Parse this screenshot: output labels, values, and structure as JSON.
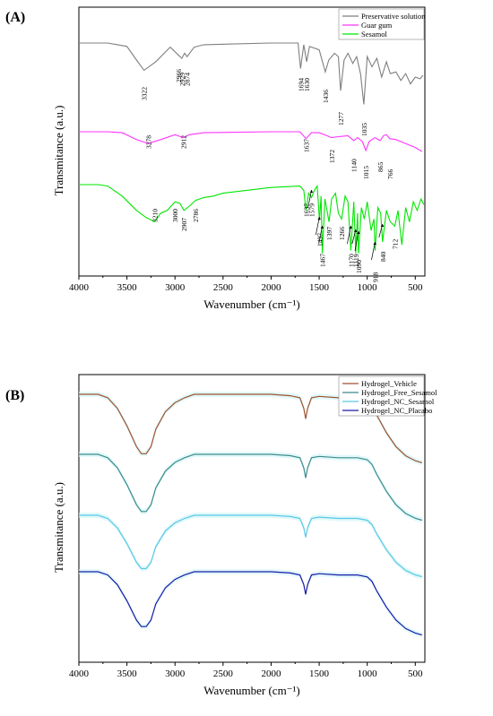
{
  "chart_data": [
    {
      "panel_label": "(A)",
      "type": "line",
      "xlabel": "Wavenumber (cm⁻¹)",
      "ylabel": "Transmitance (a.u.)",
      "xlim": [
        4000,
        400
      ],
      "x_ticks": [
        "4000",
        "3500",
        "3000",
        "2500",
        "2000",
        "1500",
        "1000",
        "500"
      ],
      "legend_position": "top-right",
      "series": [
        {
          "name": "Preservative solution",
          "color": "#7f7f7f",
          "points": [
            [
              4000,
              0.0
            ],
            [
              3700,
              0.0
            ],
            [
              3500,
              0.1
            ],
            [
              3400,
              0.5
            ],
            [
              3322,
              0.8
            ],
            [
              3200,
              0.55
            ],
            [
              3050,
              0.12
            ],
            [
              2966,
              0.35
            ],
            [
              2929,
              0.45
            ],
            [
              2900,
              0.3
            ],
            [
              2874,
              0.4
            ],
            [
              2800,
              0.12
            ],
            [
              2700,
              0.05
            ],
            [
              2000,
              0.0
            ],
            [
              1720,
              0.0
            ],
            [
              1694,
              0.75
            ],
            [
              1660,
              0.05
            ],
            [
              1630,
              0.55
            ],
            [
              1600,
              0.1
            ],
            [
              1500,
              0.2
            ],
            [
              1436,
              0.85
            ],
            [
              1400,
              0.5
            ],
            [
              1340,
              0.3
            ],
            [
              1300,
              0.4
            ],
            [
              1277,
              1.4
            ],
            [
              1240,
              0.5
            ],
            [
              1200,
              0.3
            ],
            [
              1150,
              0.6
            ],
            [
              1110,
              0.4
            ],
            [
              1070,
              0.9
            ],
            [
              1035,
              1.8
            ],
            [
              1000,
              0.4
            ],
            [
              950,
              0.7
            ],
            [
              900,
              0.45
            ],
            [
              850,
              1.0
            ],
            [
              800,
              0.55
            ],
            [
              760,
              0.9
            ],
            [
              700,
              0.85
            ],
            [
              650,
              1.1
            ],
            [
              600,
              0.9
            ],
            [
              550,
              1.2
            ],
            [
              500,
              1.0
            ],
            [
              450,
              1.05
            ],
            [
              420,
              0.95
            ]
          ]
        },
        {
          "name": "Guar gum",
          "color": "#ff33ff",
          "points": [
            [
              4000,
              0.0
            ],
            [
              3700,
              0.0
            ],
            [
              3550,
              0.05
            ],
            [
              3400,
              0.4
            ],
            [
              3278,
              0.6
            ],
            [
              3150,
              0.4
            ],
            [
              3000,
              0.15
            ],
            [
              2912,
              0.3
            ],
            [
              2850,
              0.15
            ],
            [
              2700,
              0.05
            ],
            [
              2000,
              0.0
            ],
            [
              1700,
              0.0
            ],
            [
              1637,
              0.35
            ],
            [
              1580,
              0.05
            ],
            [
              1500,
              0.05
            ],
            [
              1420,
              0.2
            ],
            [
              1372,
              0.3
            ],
            [
              1300,
              0.25
            ],
            [
              1200,
              0.2
            ],
            [
              1140,
              0.45
            ],
            [
              1100,
              0.3
            ],
            [
              1050,
              0.5
            ],
            [
              1015,
              0.95
            ],
            [
              980,
              0.5
            ],
            [
              920,
              0.3
            ],
            [
              865,
              0.45
            ],
            [
              830,
              0.2
            ],
            [
              800,
              0.15
            ],
            [
              766,
              0.35
            ],
            [
              700,
              0.4
            ],
            [
              600,
              0.6
            ],
            [
              500,
              0.8
            ],
            [
              430,
              1.0
            ]
          ]
        },
        {
          "name": "Sesamol",
          "color": "#00e600",
          "points": [
            [
              4000,
              0.0
            ],
            [
              3800,
              0.0
            ],
            [
              3700,
              0.05
            ],
            [
              3550,
              0.4
            ],
            [
              3400,
              0.9
            ],
            [
              3300,
              1.15
            ],
            [
              3210,
              1.3
            ],
            [
              3150,
              1.0
            ],
            [
              3080,
              0.9
            ],
            [
              3000,
              0.6
            ],
            [
              2950,
              0.65
            ],
            [
              2907,
              0.9
            ],
            [
              2850,
              0.75
            ],
            [
              2786,
              0.55
            ],
            [
              2700,
              0.45
            ],
            [
              2600,
              0.4
            ],
            [
              2500,
              0.3
            ],
            [
              2000,
              0.1
            ],
            [
              1700,
              0.05
            ],
            [
              1660,
              0.2
            ],
            [
              1637,
              0.9
            ],
            [
              1610,
              0.3
            ],
            [
              1579,
              0.45
            ],
            [
              1550,
              0.2
            ],
            [
              1520,
              0.05
            ],
            [
              1497,
              1.25
            ],
            [
              1480,
              0.4
            ],
            [
              1467,
              2.4
            ],
            [
              1440,
              0.5
            ],
            [
              1397,
              1.3
            ],
            [
              1370,
              0.5
            ],
            [
              1330,
              0.3
            ],
            [
              1300,
              1.0
            ],
            [
              1266,
              1.2
            ],
            [
              1230,
              0.4
            ],
            [
              1200,
              0.6
            ],
            [
              1170,
              2.3
            ],
            [
              1140,
              0.6
            ],
            [
              1119,
              2.4
            ],
            [
              1100,
              1.0
            ],
            [
              1090,
              2.4
            ],
            [
              1060,
              0.8
            ],
            [
              1030,
              1.2
            ],
            [
              1000,
              0.6
            ],
            [
              960,
              1.6
            ],
            [
              930,
              1.2
            ],
            [
              918,
              2.3
            ],
            [
              890,
              0.8
            ],
            [
              860,
              1.0
            ],
            [
              840,
              2.0
            ],
            [
              800,
              0.9
            ],
            [
              760,
              1.3
            ],
            [
              712,
              1.45
            ],
            [
              680,
              0.9
            ],
            [
              640,
              2.1
            ],
            [
              600,
              0.8
            ],
            [
              560,
              1.3
            ],
            [
              520,
              0.6
            ],
            [
              480,
              0.9
            ],
            [
              440,
              0.5
            ],
            [
              410,
              0.7
            ]
          ]
        }
      ],
      "annotations": [
        "3322",
        "2966",
        "2929",
        "2874",
        "1694",
        "1630",
        "1436",
        "1277",
        "1035",
        "3278",
        "2912",
        "1637",
        "1372",
        "1140",
        "1015",
        "865",
        "766",
        "3210",
        "3000",
        "2907",
        "2786",
        "1637",
        "1579",
        "1497",
        "1397",
        "1266",
        "1467",
        "1170",
        "1119",
        "1090",
        "840",
        "918",
        "712"
      ]
    },
    {
      "panel_label": "(B)",
      "type": "line",
      "xlabel": "Wavenumber (cm⁻¹)",
      "ylabel": "Transmitance (a.u.)",
      "xlim": [
        4000,
        400
      ],
      "x_ticks": [
        "4000",
        "3500",
        "3000",
        "2500",
        "2000",
        "1500",
        "1000",
        "500"
      ],
      "legend_position": "top-right",
      "series": [
        {
          "name": "Hydrogel_Vehicle",
          "color": "#a0522d"
        },
        {
          "name": "Hydrogel_Free_Sesamol",
          "color": "#3d8b8b"
        },
        {
          "name": "Hydrogel_NC_Sesamol",
          "color": "#5ac8e6"
        },
        {
          "name": "Hydrogel_NC_Placabo",
          "color": "#1a1aa8"
        }
      ],
      "common_profile": [
        [
          4000,
          0.0
        ],
        [
          3800,
          0.0
        ],
        [
          3700,
          0.05
        ],
        [
          3600,
          0.2
        ],
        [
          3500,
          0.45
        ],
        [
          3400,
          0.75
        ],
        [
          3350,
          0.85
        ],
        [
          3300,
          0.85
        ],
        [
          3250,
          0.75
        ],
        [
          3200,
          0.5
        ],
        [
          3100,
          0.25
        ],
        [
          3000,
          0.12
        ],
        [
          2900,
          0.05
        ],
        [
          2800,
          0.0
        ],
        [
          2500,
          0.0
        ],
        [
          2000,
          0.0
        ],
        [
          1800,
          0.02
        ],
        [
          1700,
          0.05
        ],
        [
          1660,
          0.2
        ],
        [
          1640,
          0.35
        ],
        [
          1620,
          0.2
        ],
        [
          1580,
          0.05
        ],
        [
          1500,
          0.03
        ],
        [
          1300,
          0.05
        ],
        [
          1100,
          0.05
        ],
        [
          1000,
          0.08
        ],
        [
          950,
          0.15
        ],
        [
          900,
          0.3
        ],
        [
          800,
          0.55
        ],
        [
          700,
          0.75
        ],
        [
          600,
          0.88
        ],
        [
          500,
          0.95
        ],
        [
          430,
          0.98
        ]
      ]
    }
  ]
}
